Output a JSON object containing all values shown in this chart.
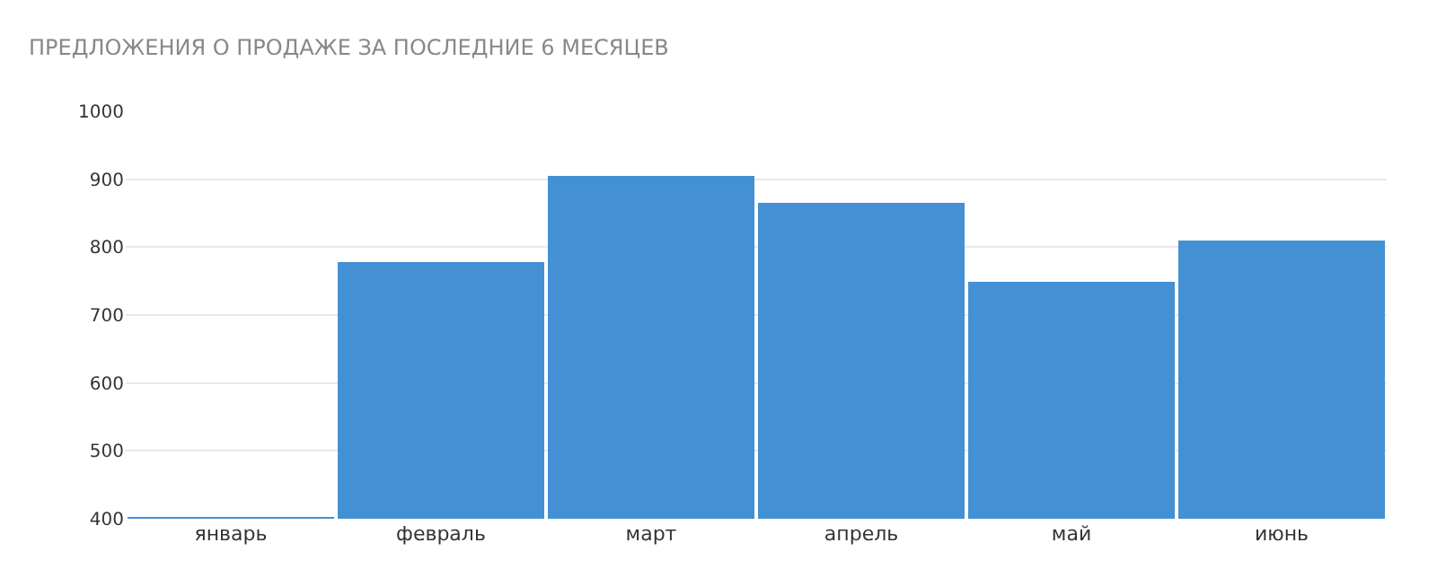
{
  "chart_data": {
    "type": "bar",
    "title": "ПРЕДЛОЖЕНИЯ О ПРОДАЖЕ ЗА ПОСЛЕДНИЕ 6 МЕСЯЦЕВ",
    "categories": [
      "январь",
      "февраль",
      "март",
      "апрель",
      "май",
      "июнь"
    ],
    "values": [
      402,
      777,
      904,
      865,
      749,
      810
    ],
    "color": "#4390d4",
    "ylim": [
      400,
      1000
    ],
    "yticks": [
      400,
      500,
      600,
      700,
      800,
      900,
      1000
    ],
    "grid": "y"
  }
}
